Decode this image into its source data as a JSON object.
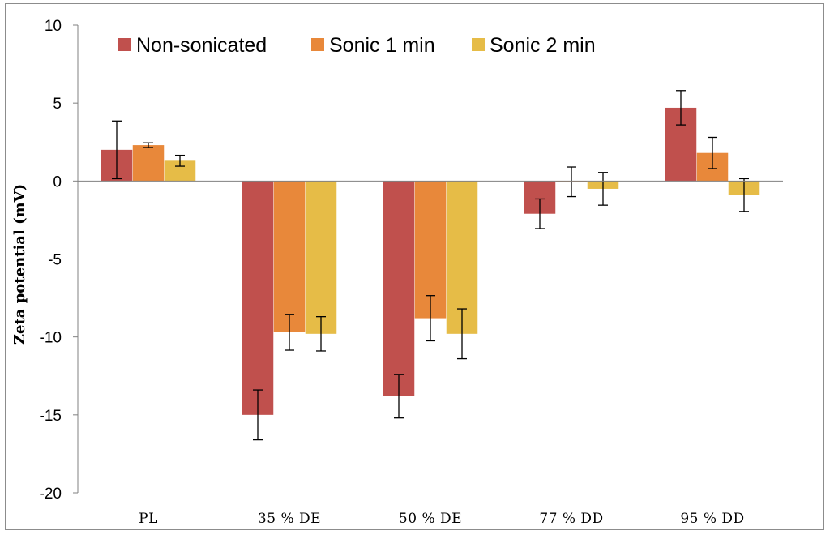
{
  "chart_data": {
    "type": "bar",
    "title": "",
    "xlabel": "",
    "ylabel": "Zeta potential (mV)",
    "ylim": [
      -20,
      10
    ],
    "yticks": [
      10,
      5,
      0,
      -5,
      -10,
      -15,
      -20
    ],
    "ytick_labels": [
      "10",
      "5",
      "0",
      "-5",
      "-10",
      "-15",
      "-20"
    ],
    "grid": false,
    "legend_position": "top-left",
    "categories": [
      "PL",
      "35 % DE",
      "50 % DE",
      "77 % DD",
      "95 % DD"
    ],
    "series": [
      {
        "name": "Non-sonicated",
        "color": "#c0504d",
        "values": [
          2.0,
          -15.0,
          -13.8,
          -2.1,
          4.7
        ],
        "errors": [
          1.85,
          1.6,
          1.4,
          0.95,
          1.1
        ]
      },
      {
        "name": "Sonic 1 min",
        "color": "#e8883a",
        "values": [
          2.3,
          -9.7,
          -8.8,
          -0.05,
          1.8
        ],
        "errors": [
          0.15,
          1.15,
          1.45,
          0.95,
          1.0
        ]
      },
      {
        "name": "Sonic 2 min",
        "color": "#e6bc47",
        "values": [
          1.3,
          -9.8,
          -9.8,
          -0.5,
          -0.9
        ],
        "errors": [
          0.35,
          1.1,
          1.6,
          1.05,
          1.05
        ]
      }
    ]
  }
}
